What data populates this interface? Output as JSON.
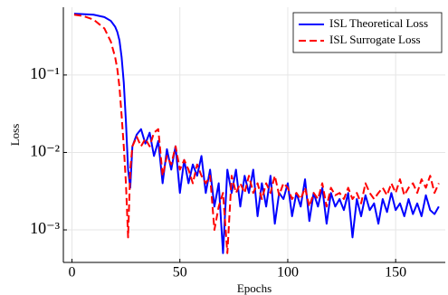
{
  "chart_data": {
    "type": "line",
    "xlabel": "Epochs",
    "ylabel": "Loss",
    "x": [
      1,
      5,
      10,
      15,
      18,
      20,
      21,
      22,
      23,
      24,
      25,
      26,
      27,
      28,
      30,
      32,
      34,
      36,
      38,
      40,
      42,
      44,
      46,
      48,
      50,
      52,
      54,
      56,
      58,
      60,
      62,
      64,
      66,
      68,
      70,
      72,
      74,
      76,
      78,
      80,
      82,
      84,
      86,
      88,
      90,
      92,
      94,
      96,
      98,
      100,
      102,
      104,
      106,
      108,
      110,
      112,
      114,
      116,
      118,
      120,
      122,
      124,
      126,
      128,
      130,
      132,
      134,
      136,
      138,
      140,
      142,
      144,
      146,
      148,
      150,
      152,
      154,
      156,
      158,
      160,
      162,
      164,
      166,
      168,
      170
    ],
    "series": [
      {
        "name": "ISL Theoretical Loss",
        "color": "#0000ff",
        "dash": "solid",
        "values": [
          0.62,
          0.61,
          0.6,
          0.56,
          0.5,
          0.42,
          0.36,
          0.28,
          0.17,
          0.08,
          0.025,
          0.006,
          0.0035,
          0.012,
          0.017,
          0.02,
          0.013,
          0.018,
          0.009,
          0.014,
          0.004,
          0.011,
          0.006,
          0.012,
          0.003,
          0.008,
          0.004,
          0.007,
          0.005,
          0.009,
          0.003,
          0.006,
          0.002,
          0.004,
          0.0005,
          0.006,
          0.003,
          0.006,
          0.002,
          0.005,
          0.003,
          0.006,
          0.0015,
          0.004,
          0.002,
          0.005,
          0.0012,
          0.003,
          0.0025,
          0.004,
          0.0015,
          0.003,
          0.002,
          0.0045,
          0.0013,
          0.003,
          0.002,
          0.0035,
          0.0012,
          0.003,
          0.002,
          0.0025,
          0.0018,
          0.003,
          0.0008,
          0.0025,
          0.0015,
          0.0028,
          0.0018,
          0.0022,
          0.0012,
          0.0025,
          0.0017,
          0.003,
          0.0018,
          0.0022,
          0.0015,
          0.0025,
          0.0016,
          0.0022,
          0.0015,
          0.0028,
          0.0018,
          0.0016,
          0.002
        ]
      },
      {
        "name": "ISL Surrogate Loss",
        "color": "#ff0000",
        "dash": "dashed",
        "values": [
          0.6,
          0.58,
          0.52,
          0.4,
          0.27,
          0.17,
          0.12,
          0.07,
          0.03,
          0.012,
          0.004,
          0.0008,
          0.006,
          0.012,
          0.016,
          0.012,
          0.015,
          0.012,
          0.018,
          0.02,
          0.005,
          0.009,
          0.007,
          0.012,
          0.006,
          0.008,
          0.006,
          0.004,
          0.007,
          0.005,
          0.004,
          0.005,
          0.001,
          0.002,
          0.003,
          0.0005,
          0.005,
          0.003,
          0.004,
          0.003,
          0.005,
          0.003,
          0.004,
          0.0025,
          0.004,
          0.003,
          0.005,
          0.0028,
          0.004,
          0.0035,
          0.0025,
          0.003,
          0.0025,
          0.0035,
          0.002,
          0.003,
          0.0025,
          0.004,
          0.002,
          0.0035,
          0.0028,
          0.003,
          0.0025,
          0.0035,
          0.0025,
          0.003,
          0.0022,
          0.004,
          0.003,
          0.0025,
          0.003,
          0.0035,
          0.0028,
          0.004,
          0.003,
          0.0045,
          0.0028,
          0.0035,
          0.004,
          0.003,
          0.0045,
          0.0035,
          0.005,
          0.003,
          0.004
        ]
      }
    ],
    "xlim": [
      -4,
      173
    ],
    "xticks": [
      0,
      50,
      100,
      150
    ],
    "ylim": [
      0.00038,
      0.75
    ],
    "ylog": true,
    "yticks": [
      {
        "value": 0.001,
        "label": "10⁻³"
      },
      {
        "value": 0.01,
        "label": "10⁻²"
      },
      {
        "value": 0.1,
        "label": "10⁻¹"
      }
    ],
    "grid": true,
    "legend": "top-right"
  }
}
